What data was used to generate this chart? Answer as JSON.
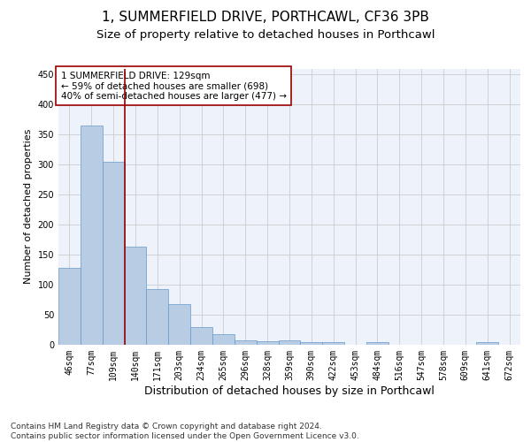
{
  "title": "1, SUMMERFIELD DRIVE, PORTHCAWL, CF36 3PB",
  "subtitle": "Size of property relative to detached houses in Porthcawl",
  "xlabel": "Distribution of detached houses by size in Porthcawl",
  "ylabel": "Number of detached properties",
  "categories": [
    "46sqm",
    "77sqm",
    "109sqm",
    "140sqm",
    "171sqm",
    "203sqm",
    "234sqm",
    "265sqm",
    "296sqm",
    "328sqm",
    "359sqm",
    "390sqm",
    "422sqm",
    "453sqm",
    "484sqm",
    "516sqm",
    "547sqm",
    "578sqm",
    "609sqm",
    "641sqm",
    "672sqm"
  ],
  "values": [
    128,
    365,
    304,
    163,
    93,
    67,
    30,
    18,
    8,
    6,
    8,
    4,
    4,
    0,
    4,
    0,
    0,
    0,
    0,
    4,
    0
  ],
  "bar_color": "#b8cce4",
  "bar_edge_color": "#6699cc",
  "grid_color": "#cccccc",
  "vline_x": 2.5,
  "vline_color": "#990000",
  "annotation_text": "1 SUMMERFIELD DRIVE: 129sqm\n← 59% of detached houses are smaller (698)\n40% of semi-detached houses are larger (477) →",
  "annotation_box_color": "#ffffff",
  "annotation_box_edge": "#990000",
  "ylim": [
    0,
    460
  ],
  "yticks": [
    0,
    50,
    100,
    150,
    200,
    250,
    300,
    350,
    400,
    450
  ],
  "footer": "Contains HM Land Registry data © Crown copyright and database right 2024.\nContains public sector information licensed under the Open Government Licence v3.0.",
  "title_fontsize": 11,
  "subtitle_fontsize": 9.5,
  "xlabel_fontsize": 9,
  "ylabel_fontsize": 8,
  "tick_fontsize": 7,
  "annotation_fontsize": 7.5,
  "footer_fontsize": 6.5,
  "bg_color": "#eef3fb"
}
